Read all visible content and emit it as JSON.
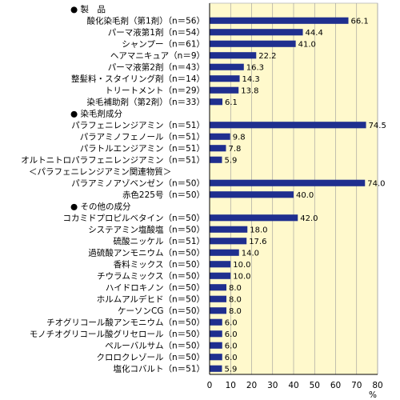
{
  "chart_data": {
    "type": "bar",
    "orientation": "horizontal",
    "x_unit": "%",
    "xlim": [
      0,
      80
    ],
    "x_ticks": [
      0,
      10,
      20,
      30,
      40,
      50,
      60,
      70,
      80
    ],
    "grid": true,
    "colors": {
      "bar": "#1f2f8f",
      "plot_background": "#fff9cc",
      "grid": "#999999"
    },
    "rows": [
      {
        "kind": "header",
        "label": "● 製　品"
      },
      {
        "kind": "bar",
        "label": "酸化染毛剤（第1剤）（n＝56）",
        "value": 66.1,
        "value_label": "66.1"
      },
      {
        "kind": "bar",
        "label": "パーマ液第1剤（n＝54）",
        "value": 44.4,
        "value_label": "44.4"
      },
      {
        "kind": "bar",
        "label": "シャンプー（n＝61）",
        "value": 41.0,
        "value_label": "41.0"
      },
      {
        "kind": "bar",
        "label": "ヘアマニキュア（n＝9）",
        "value": 22.2,
        "value_label": "22.2"
      },
      {
        "kind": "bar",
        "label": "パーマ液第2剤（n＝43）",
        "value": 16.3,
        "value_label": "16.3"
      },
      {
        "kind": "bar",
        "label": "整髪料・スタイリング剤（n＝14）",
        "value": 14.3,
        "value_label": "14.3"
      },
      {
        "kind": "bar",
        "label": "トリートメント（n＝29）",
        "value": 13.8,
        "value_label": "13.8"
      },
      {
        "kind": "bar",
        "label": "染毛補助剤（第2剤）（n＝33）",
        "value": 6.1,
        "value_label": "6.1"
      },
      {
        "kind": "header",
        "label": "● 染毛剤成分"
      },
      {
        "kind": "bar",
        "label": "パラフェニレンジアミン（n＝51）",
        "value": 74.5,
        "value_label": "74.5"
      },
      {
        "kind": "bar",
        "label": "パラアミノフェノール（n＝51）",
        "value": 9.8,
        "value_label": "9.8"
      },
      {
        "kind": "bar",
        "label": "パラトルエンジアミン（n＝51）",
        "value": 7.8,
        "value_label": "7.8"
      },
      {
        "kind": "bar",
        "label": "オルトニトロパラフェニレンジアミン（n＝51）",
        "value": 5.9,
        "value_label": "5.9"
      },
      {
        "kind": "header",
        "label": "＜パラフェニレンジアミン関連物質＞",
        "indent": true
      },
      {
        "kind": "bar",
        "label": "パラアミノアゾベンゼン（n＝50）",
        "value": 74.0,
        "value_label": "74.0"
      },
      {
        "kind": "bar",
        "label": "赤色225号（n＝50）",
        "value": 40.0,
        "value_label": "40.0"
      },
      {
        "kind": "header",
        "label": "● その他の成分"
      },
      {
        "kind": "bar",
        "label": "コカミドプロピルベタイン（n＝50）",
        "value": 42.0,
        "value_label": "42.0"
      },
      {
        "kind": "bar",
        "label": "システアミン塩酸塩（n＝50）",
        "value": 18.0,
        "value_label": "18.0"
      },
      {
        "kind": "bar",
        "label": "硫酸ニッケル（n＝51）",
        "value": 17.6,
        "value_label": "17.6"
      },
      {
        "kind": "bar",
        "label": "過硫酸アンモニウム（n＝50）",
        "value": 14.0,
        "value_label": "14.0"
      },
      {
        "kind": "bar",
        "label": "香料ミックス（n＝50）",
        "value": 10.0,
        "value_label": "10.0"
      },
      {
        "kind": "bar",
        "label": "チウラムミックス（n＝50）",
        "value": 10.0,
        "value_label": "10.0"
      },
      {
        "kind": "bar",
        "label": "ハイドロキノン（n＝50）",
        "value": 8.0,
        "value_label": "8.0"
      },
      {
        "kind": "bar",
        "label": "ホルムアルデヒド（n＝50）",
        "value": 8.0,
        "value_label": "8.0"
      },
      {
        "kind": "bar",
        "label": "ケーソンCG（n＝50）",
        "value": 8.0,
        "value_label": "8.0"
      },
      {
        "kind": "bar",
        "label": "チオグリコール酸アンモニウム（n＝50）",
        "value": 6.0,
        "value_label": "6.0"
      },
      {
        "kind": "bar",
        "label": "モノチオグリコール酸グリセロール（n＝50）",
        "value": 6.0,
        "value_label": "6.0"
      },
      {
        "kind": "bar",
        "label": "ペルーバルサム（n＝50）",
        "value": 6.0,
        "value_label": "6.0"
      },
      {
        "kind": "bar",
        "label": "クロロクレゾール（n＝50）",
        "value": 6.0,
        "value_label": "6.0"
      },
      {
        "kind": "bar",
        "label": "塩化コバルト（n＝51）",
        "value": 5.9,
        "value_label": "5.9"
      }
    ]
  }
}
